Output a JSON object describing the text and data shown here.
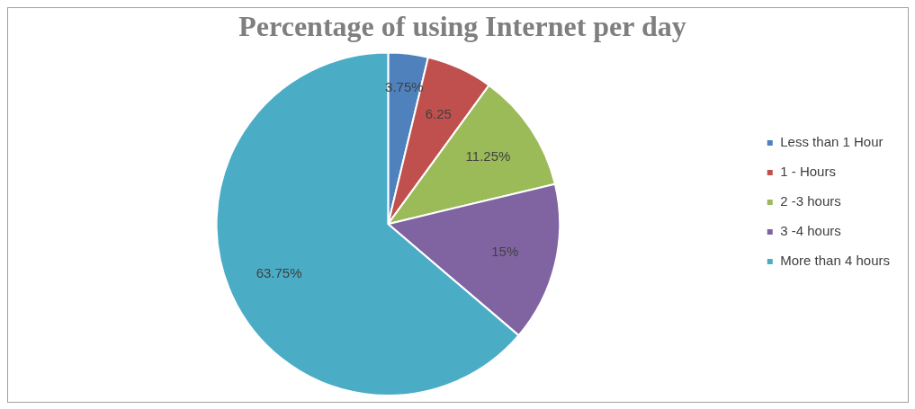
{
  "chart_data": {
    "type": "pie",
    "title": "Percentage of using Internet per day",
    "categories": [
      "Less than 1 Hour",
      "1 - Hours",
      "2 -3 hours",
      "3 -4 hours",
      "More than 4 hours"
    ],
    "values": [
      3.75,
      6.25,
      11.25,
      15,
      63.75
    ],
    "colors": [
      "#4f81bd",
      "#c0504d",
      "#9bbb59",
      "#8064a2",
      "#4bacc6"
    ],
    "value_labels": [
      "3.75%",
      "6.25",
      "11.25%",
      "15%",
      "63.75%"
    ],
    "legend": "right"
  }
}
